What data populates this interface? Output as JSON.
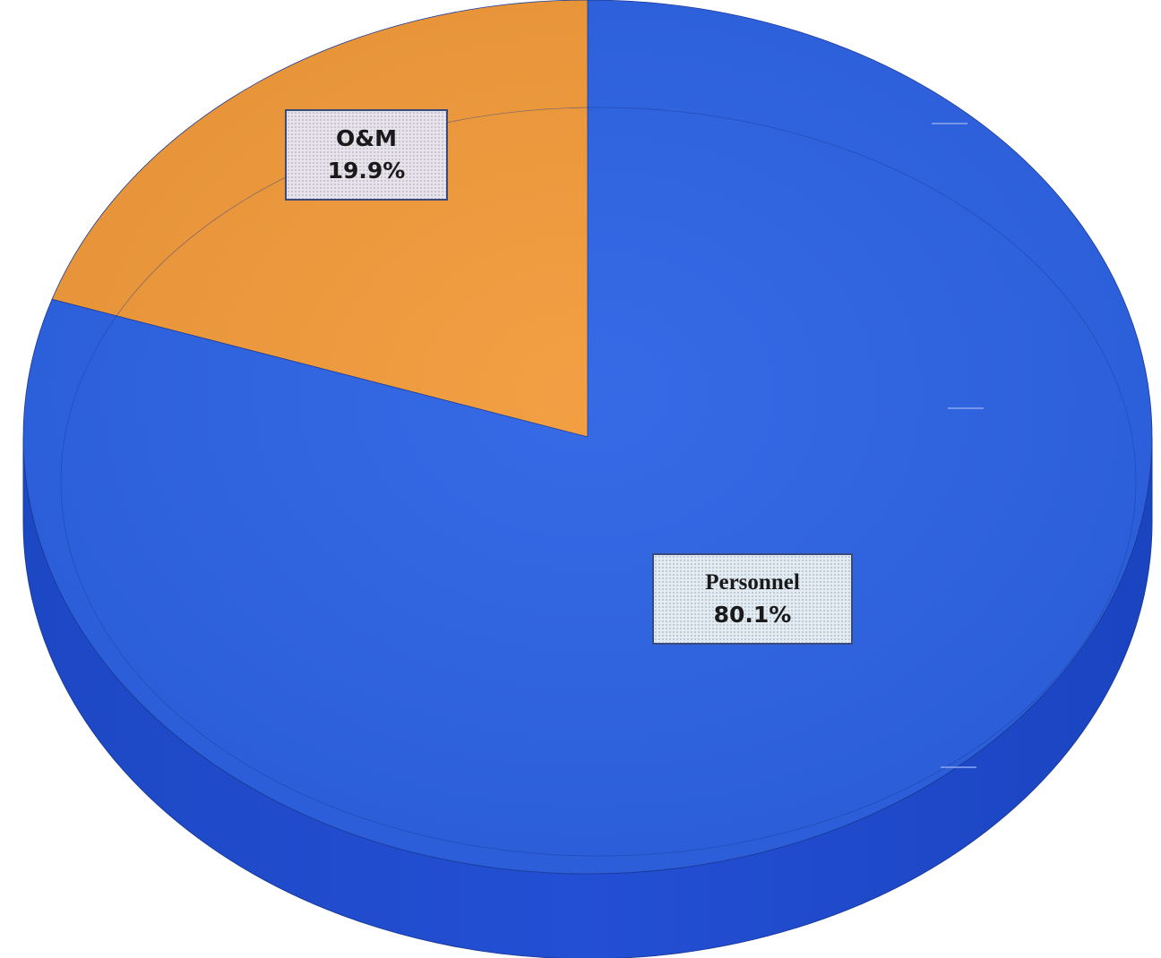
{
  "chart_data": {
    "type": "pie",
    "style": "3d",
    "slices": [
      {
        "label": "O&M",
        "value": 19.9,
        "display": "19.9%",
        "color": "#f29a3a"
      },
      {
        "label": "Personnel",
        "value": 80.1,
        "display": "80.1%",
        "color": "#2c62e4"
      }
    ],
    "title": "",
    "legend": "none"
  }
}
